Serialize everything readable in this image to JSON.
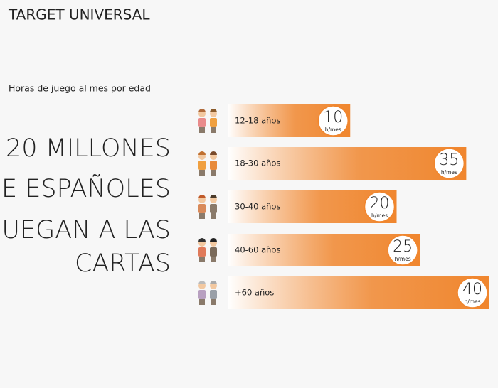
{
  "chart_data": {
    "type": "bar",
    "title": "TARGET UNIVERSAL",
    "subtitle": "Horas de juego al mes por edad",
    "headline": [
      "20 MILLONES",
      "DE ESPAÑOLES",
      "JUEGAN A LAS",
      "CARTAS"
    ],
    "categories": [
      "12-18 años",
      "18-30 años",
      "30-40 años",
      "40-60 años",
      "+60 años"
    ],
    "values": [
      10,
      35,
      20,
      25,
      40
    ],
    "unit": "h/mes",
    "color": "#f0862e"
  }
}
